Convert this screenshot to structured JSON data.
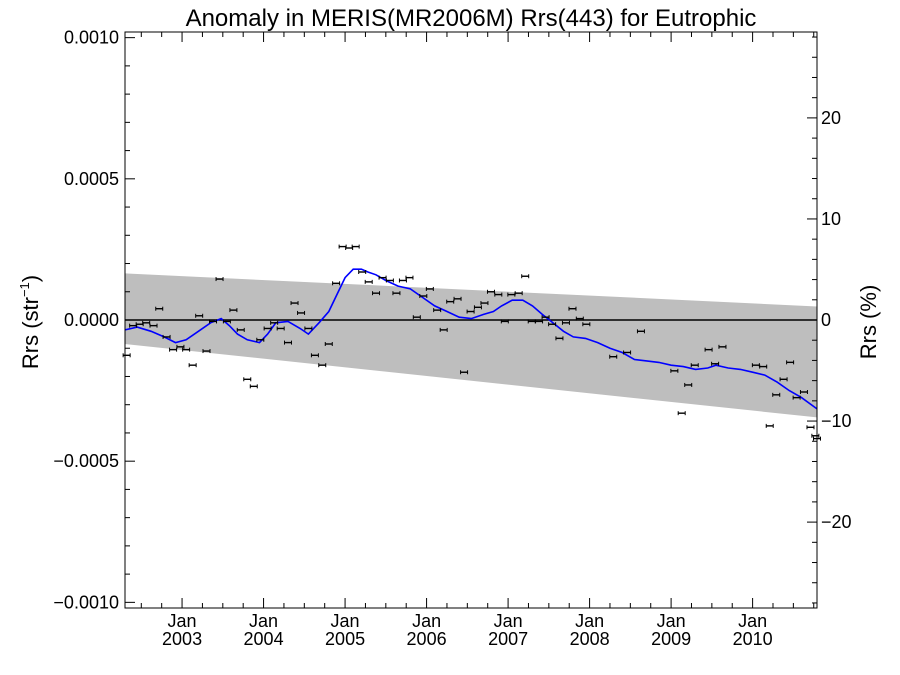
{
  "chart_data": {
    "type": "scatter",
    "title": "Anomaly in MERIS(MR2006M) Rrs(443) for Eutrophic",
    "ylabel": "Rrs (str",
    "ylabel_superscript": "−1",
    "ylabel_close": ")",
    "y2label": "Rrs (%)",
    "ylim": [
      -0.00102,
      0.00102
    ],
    "y2lim": [
      -28.5,
      28.5
    ],
    "xlim": [
      2002.3,
      2010.79
    ],
    "grid": false,
    "legend": "none",
    "y_ticks": [
      {
        "value": 0.001,
        "label": "0.0010"
      },
      {
        "value": 0.0005,
        "label": "0.0005"
      },
      {
        "value": 0.0,
        "label": "0.0000"
      },
      {
        "value": -0.0005,
        "label": "−0.0005"
      },
      {
        "value": -0.001,
        "label": "−0.0010"
      }
    ],
    "y2_ticks": [
      {
        "value": 20,
        "label": "20"
      },
      {
        "value": 10,
        "label": "10"
      },
      {
        "value": 0,
        "label": "0"
      },
      {
        "value": -10,
        "label": "−10"
      },
      {
        "value": -20,
        "label": "−20"
      }
    ],
    "x_ticks": [
      {
        "value": 2003.0,
        "month": "Jan",
        "year": "2003"
      },
      {
        "value": 2004.0,
        "month": "Jan",
        "year": "2004"
      },
      {
        "value": 2005.0,
        "month": "Jan",
        "year": "2005"
      },
      {
        "value": 2006.0,
        "month": "Jan",
        "year": "2006"
      },
      {
        "value": 2007.0,
        "month": "Jan",
        "year": "2007"
      },
      {
        "value": 2008.0,
        "month": "Jan",
        "year": "2008"
      },
      {
        "value": 2009.0,
        "month": "Jan",
        "year": "2009"
      },
      {
        "value": 2010.0,
        "month": "Jan",
        "year": "2010"
      }
    ],
    "zero_line": 0,
    "confidence_band": {
      "x": [
        2002.3,
        2010.79
      ],
      "upper": [
        0.000165,
        4.8e-05
      ],
      "lower": [
        -8.5e-05,
        -0.000345
      ],
      "color": "#bebebe"
    },
    "smoothed_line": {
      "color": "#0000ff",
      "x": [
        2002.3,
        2002.45,
        2002.62,
        2002.78,
        2002.92,
        2003.05,
        2003.2,
        2003.35,
        2003.48,
        2003.58,
        2003.68,
        2003.8,
        2003.95,
        2004.05,
        2004.15,
        2004.3,
        2004.45,
        2004.55,
        2004.68,
        2004.8,
        2004.9,
        2005.0,
        2005.1,
        2005.2,
        2005.28,
        2005.38,
        2005.5,
        2005.65,
        2005.8,
        2005.95,
        2006.1,
        2006.25,
        2006.4,
        2006.55,
        2006.7,
        2006.82,
        2006.92,
        2007.05,
        2007.18,
        2007.3,
        2007.42,
        2007.55,
        2007.68,
        2007.8,
        2007.95,
        2008.1,
        2008.25,
        2008.4,
        2008.55,
        2008.7,
        2008.85,
        2009.0,
        2009.15,
        2009.3,
        2009.45,
        2009.55,
        2009.7,
        2009.85,
        2010.0,
        2010.15,
        2010.3,
        2010.45,
        2010.6,
        2010.79
      ],
      "y": [
        -3.5e-05,
        -2.5e-05,
        -4e-05,
        -6e-05,
        -8e-05,
        -7e-05,
        -4e-05,
        -1e-05,
        5e-06,
        -2e-05,
        -5e-05,
        -7e-05,
        -8e-05,
        -5e-05,
        -1e-05,
        -5e-06,
        -3e-05,
        -5e-05,
        -1e-05,
        3e-05,
        9e-05,
        0.00015,
        0.00018,
        0.00018,
        0.00017,
        0.00016,
        0.00014,
        0.00012,
        0.00011,
        8e-05,
        5e-05,
        3e-05,
        1e-05,
        5e-06,
        2e-05,
        3e-05,
        5e-05,
        7e-05,
        7e-05,
        5e-05,
        2e-05,
        -1e-05,
        -4e-05,
        -6e-05,
        -6.5e-05,
        -8e-05,
        -0.0001,
        -0.000115,
        -0.00014,
        -0.000145,
        -0.00015,
        -0.00016,
        -0.000165,
        -0.000175,
        -0.00017,
        -0.00016,
        -0.00017,
        -0.000175,
        -0.000185,
        -0.000195,
        -0.00022,
        -0.00025,
        -0.000275,
        -0.000315
      ]
    },
    "points": {
      "color": "#000000",
      "x": [
        2002.32,
        2002.4,
        2002.48,
        2002.56,
        2002.65,
        2002.72,
        2002.81,
        2002.89,
        2002.98,
        2003.05,
        2003.13,
        2003.21,
        2003.3,
        2003.38,
        2003.46,
        2003.55,
        2003.63,
        2003.72,
        2003.8,
        2003.88,
        2003.96,
        2004.05,
        2004.13,
        2004.21,
        2004.3,
        2004.38,
        2004.46,
        2004.55,
        2004.63,
        2004.72,
        2004.8,
        2004.89,
        2004.97,
        2005.05,
        2005.13,
        2005.21,
        2005.29,
        2005.38,
        2005.46,
        2005.55,
        2005.63,
        2005.71,
        2005.79,
        2005.88,
        2005.96,
        2006.04,
        2006.13,
        2006.21,
        2006.29,
        2006.38,
        2006.46,
        2006.54,
        2006.63,
        2006.71,
        2006.79,
        2006.88,
        2006.96,
        2007.04,
        2007.13,
        2007.21,
        2007.29,
        2007.38,
        2007.46,
        2007.54,
        2007.63,
        2007.71,
        2007.79,
        2007.88,
        2007.96,
        2008.29,
        2008.46,
        2008.63,
        2009.04,
        2009.13,
        2009.21,
        2009.29,
        2009.46,
        2009.54,
        2009.63,
        2010.04,
        2010.13,
        2010.21,
        2010.29,
        2010.38,
        2010.46,
        2010.54,
        2010.63,
        2010.71,
        2010.77,
        2010.79
      ],
      "y": [
        -0.000125,
        -2e-05,
        -1.5e-05,
        -1e-05,
        -2e-05,
        4e-05,
        -6e-05,
        -0.000105,
        -9.5e-05,
        -0.000105,
        -0.00016,
        1.5e-05,
        -0.00011,
        -5e-06,
        0.000145,
        -5e-06,
        3.5e-05,
        -3.5e-05,
        -0.00021,
        -0.000235,
        -7e-05,
        -3e-05,
        -1e-05,
        -3e-05,
        -8e-05,
        6e-05,
        2.5e-05,
        -3e-05,
        -0.000125,
        -0.00016,
        -8.5e-05,
        0.00013,
        0.00026,
        0.000255,
        0.00026,
        0.00017,
        0.000135,
        9.5e-05,
        0.00015,
        0.00014,
        9.5e-05,
        0.00014,
        0.00015,
        1e-05,
        8.5e-05,
        0.00011,
        3.5e-05,
        -3.5e-05,
        6.5e-05,
        7.5e-05,
        -0.000185,
        3e-05,
        4.5e-05,
        6e-05,
        0.0001,
        9e-05,
        -5e-06,
        9e-05,
        9.5e-05,
        0.000155,
        -5e-06,
        -5e-06,
        1e-05,
        -1.5e-05,
        -6.5e-05,
        -1e-05,
        4e-05,
        5e-06,
        -1.5e-05,
        -0.00013,
        -0.000115,
        -4e-05,
        -0.00018,
        -0.00033,
        -0.00023,
        -0.00016,
        -0.000105,
        -0.000155,
        -9.5e-05,
        -0.00016,
        -0.000165,
        -0.000375,
        -0.000265,
        -0.00021,
        -0.00015,
        -0.000275,
        -0.000255,
        -0.00038,
        -0.00041,
        -0.00042
      ]
    }
  }
}
